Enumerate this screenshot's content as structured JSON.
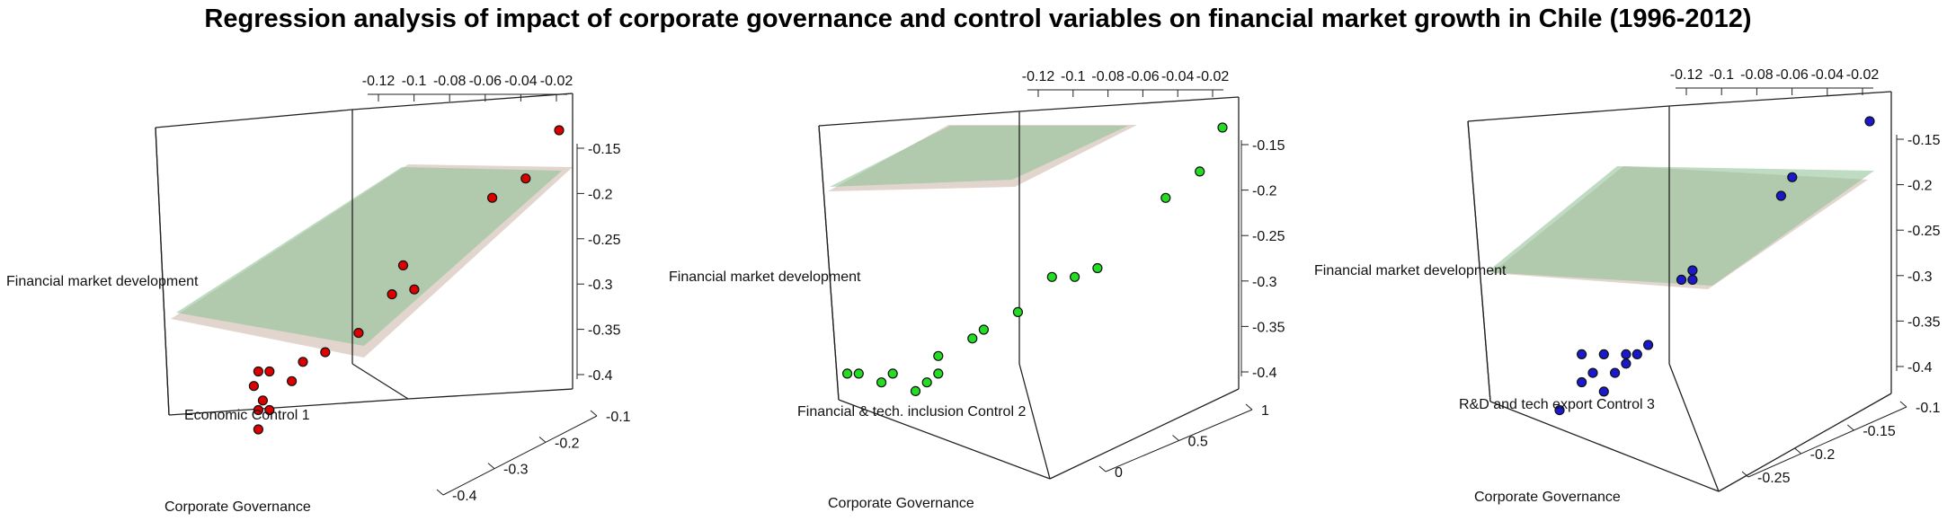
{
  "title": "Regression analysis of impact of corporate governance and control variables on financial market growth in Chile (1996-2012)",
  "colors": {
    "plane_beige": "#c9b3a6",
    "plane_green": "#8bbf90",
    "panel_red": "#dd0000",
    "panel_green": "#22dd22",
    "panel_blue": "#1a1acc"
  },
  "chart_data": [
    {
      "type": "scatter",
      "subtype": "3d-scatter-with-regression-planes",
      "xlabel": "Corporate Governance",
      "ylabel": "Economic Control 1",
      "zlabel": "Financial market development",
      "top_ticks": [
        "-0.12",
        "-0.1",
        "-0.08",
        "-0.06",
        "-0.04",
        "-0.02"
      ],
      "z_ticks": [
        "-0.15",
        "-0.2",
        "-0.25",
        "-0.3",
        "-0.35",
        "-0.4"
      ],
      "front_ticks": [
        "-0.1",
        "-0.2",
        "-0.3",
        "-0.4"
      ],
      "point_color": "#dd0000",
      "points": [
        {
          "x": -0.01,
          "z": -0.14
        },
        {
          "x": -0.025,
          "z": -0.19
        },
        {
          "x": -0.04,
          "z": -0.21
        },
        {
          "x": -0.08,
          "z": -0.28
        },
        {
          "x": -0.075,
          "z": -0.305
        },
        {
          "x": -0.085,
          "z": -0.31
        },
        {
          "x": -0.1,
          "z": -0.35
        },
        {
          "x": -0.115,
          "z": -0.37
        },
        {
          "x": -0.125,
          "z": -0.38
        },
        {
          "x": -0.13,
          "z": -0.4
        },
        {
          "x": -0.14,
          "z": -0.39
        },
        {
          "x": -0.145,
          "z": -0.39
        },
        {
          "x": -0.147,
          "z": -0.405
        },
        {
          "x": -0.143,
          "z": -0.42
        },
        {
          "x": -0.14,
          "z": -0.43
        },
        {
          "x": -0.145,
          "z": -0.43
        },
        {
          "x": -0.145,
          "z": -0.45
        }
      ]
    },
    {
      "type": "scatter",
      "subtype": "3d-scatter-with-regression-planes",
      "xlabel": "Corporate Governance",
      "ylabel": "Financial & tech. inclusion Control 2",
      "zlabel": "Financial market development",
      "top_ticks": [
        "-0.12",
        "-0.1",
        "-0.08",
        "-0.06",
        "-0.04",
        "-0.02"
      ],
      "z_ticks": [
        "-0.15",
        "-0.2",
        "-0.25",
        "-0.3",
        "-0.35",
        "-0.4"
      ],
      "front_ticks": [
        "1",
        "0.5",
        "0"
      ],
      "point_color": "#22dd22",
      "points": [
        {
          "x": -0.01,
          "z": -0.13
        },
        {
          "x": -0.02,
          "z": -0.18
        },
        {
          "x": -0.035,
          "z": -0.21
        },
        {
          "x": -0.065,
          "z": -0.29
        },
        {
          "x": -0.075,
          "z": -0.3
        },
        {
          "x": -0.085,
          "z": -0.3
        },
        {
          "x": -0.1,
          "z": -0.34
        },
        {
          "x": -0.115,
          "z": -0.36
        },
        {
          "x": -0.12,
          "z": -0.37
        },
        {
          "x": -0.135,
          "z": -0.39
        },
        {
          "x": -0.155,
          "z": -0.41
        },
        {
          "x": -0.17,
          "z": -0.41
        },
        {
          "x": -0.175,
          "z": -0.41
        },
        {
          "x": -0.135,
          "z": -0.41
        },
        {
          "x": -0.14,
          "z": -0.42
        },
        {
          "x": -0.145,
          "z": -0.43
        },
        {
          "x": -0.16,
          "z": -0.42
        }
      ]
    },
    {
      "type": "scatter",
      "subtype": "3d-scatter-with-regression-planes",
      "xlabel": "Corporate Governance",
      "ylabel": "R&D and tech export Control 3",
      "zlabel": "Financial market development",
      "top_ticks": [
        "-0.12",
        "-0.1",
        "-0.08",
        "-0.06",
        "-0.04",
        "-0.02"
      ],
      "z_ticks": [
        "-0.15",
        "-0.2",
        "-0.25",
        "-0.3",
        "-0.35",
        "-0.4"
      ],
      "front_ticks": [
        "-0.1",
        "-0.15",
        "-0.2",
        "-0.25"
      ],
      "point_color": "#1a1acc",
      "points": [
        {
          "x": -0.01,
          "z": -0.13
        },
        {
          "x": -0.045,
          "z": -0.19
        },
        {
          "x": -0.05,
          "z": -0.21
        },
        {
          "x": -0.09,
          "z": -0.29
        },
        {
          "x": -0.09,
          "z": -0.3
        },
        {
          "x": -0.095,
          "z": -0.3
        },
        {
          "x": -0.11,
          "z": -0.37
        },
        {
          "x": -0.115,
          "z": -0.38
        },
        {
          "x": -0.12,
          "z": -0.38
        },
        {
          "x": -0.13,
          "z": -0.38
        },
        {
          "x": -0.14,
          "z": -0.38
        },
        {
          "x": -0.12,
          "z": -0.39
        },
        {
          "x": -0.125,
          "z": -0.4
        },
        {
          "x": -0.135,
          "z": -0.4
        },
        {
          "x": -0.14,
          "z": -0.41
        },
        {
          "x": -0.13,
          "z": -0.42
        },
        {
          "x": -0.15,
          "z": -0.44
        }
      ]
    }
  ]
}
